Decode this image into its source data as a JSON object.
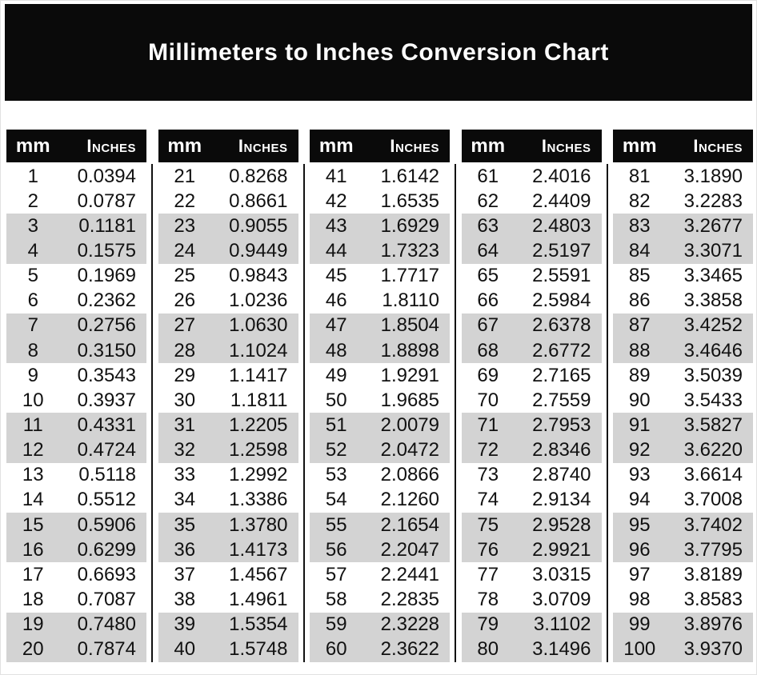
{
  "title": "Millimeters to Inches Conversion Chart",
  "table_headers": {
    "mm": "mm",
    "inches": "Inches"
  },
  "colors": {
    "banner_bg": "#0a0a0a",
    "header_bg": "#0a0a0a",
    "header_text": "#ffffff",
    "title_color": "#ffffff",
    "stripe_gray": "#d3d3d3",
    "divider_color": "#111111",
    "body_text": "#111111",
    "page_bg": "#ffffff"
  },
  "chart_data": {
    "type": "table",
    "title": "Millimeters to Inches Conversion Chart",
    "column_headers": [
      "mm",
      "Inches"
    ],
    "layout": {
      "groups_count": 5,
      "rows_per_group": 20,
      "stripe_pattern": "alternating-pairs"
    },
    "groups": [
      {
        "rows": [
          [
            "1",
            "0.0394"
          ],
          [
            "2",
            "0.0787"
          ],
          [
            "3",
            "0.1181"
          ],
          [
            "4",
            "0.1575"
          ],
          [
            "5",
            "0.1969"
          ],
          [
            "6",
            "0.2362"
          ],
          [
            "7",
            "0.2756"
          ],
          [
            "8",
            "0.3150"
          ],
          [
            "9",
            "0.3543"
          ],
          [
            "10",
            "0.3937"
          ],
          [
            "11",
            "0.4331"
          ],
          [
            "12",
            "0.4724"
          ],
          [
            "13",
            "0.5118"
          ],
          [
            "14",
            "0.5512"
          ],
          [
            "15",
            "0.5906"
          ],
          [
            "16",
            "0.6299"
          ],
          [
            "17",
            "0.6693"
          ],
          [
            "18",
            "0.7087"
          ],
          [
            "19",
            "0.7480"
          ],
          [
            "20",
            "0.7874"
          ]
        ]
      },
      {
        "rows": [
          [
            "21",
            "0.8268"
          ],
          [
            "22",
            "0.8661"
          ],
          [
            "23",
            "0.9055"
          ],
          [
            "24",
            "0.9449"
          ],
          [
            "25",
            "0.9843"
          ],
          [
            "26",
            "1.0236"
          ],
          [
            "27",
            "1.0630"
          ],
          [
            "28",
            "1.1024"
          ],
          [
            "29",
            "1.1417"
          ],
          [
            "30",
            "1.1811"
          ],
          [
            "31",
            "1.2205"
          ],
          [
            "32",
            "1.2598"
          ],
          [
            "33",
            "1.2992"
          ],
          [
            "34",
            "1.3386"
          ],
          [
            "35",
            "1.3780"
          ],
          [
            "36",
            "1.4173"
          ],
          [
            "37",
            "1.4567"
          ],
          [
            "38",
            "1.4961"
          ],
          [
            "39",
            "1.5354"
          ],
          [
            "40",
            "1.5748"
          ]
        ]
      },
      {
        "rows": [
          [
            "41",
            "1.6142"
          ],
          [
            "42",
            "1.6535"
          ],
          [
            "43",
            "1.6929"
          ],
          [
            "44",
            "1.7323"
          ],
          [
            "45",
            "1.7717"
          ],
          [
            "46",
            "1.8110"
          ],
          [
            "47",
            "1.8504"
          ],
          [
            "48",
            "1.8898"
          ],
          [
            "49",
            "1.9291"
          ],
          [
            "50",
            "1.9685"
          ],
          [
            "51",
            "2.0079"
          ],
          [
            "52",
            "2.0472"
          ],
          [
            "53",
            "2.0866"
          ],
          [
            "54",
            "2.1260"
          ],
          [
            "55",
            "2.1654"
          ],
          [
            "56",
            "2.2047"
          ],
          [
            "57",
            "2.2441"
          ],
          [
            "58",
            "2.2835"
          ],
          [
            "59",
            "2.3228"
          ],
          [
            "60",
            "2.3622"
          ]
        ]
      },
      {
        "rows": [
          [
            "61",
            "2.4016"
          ],
          [
            "62",
            "2.4409"
          ],
          [
            "63",
            "2.4803"
          ],
          [
            "64",
            "2.5197"
          ],
          [
            "65",
            "2.5591"
          ],
          [
            "66",
            "2.5984"
          ],
          [
            "67",
            "2.6378"
          ],
          [
            "68",
            "2.6772"
          ],
          [
            "69",
            "2.7165"
          ],
          [
            "70",
            "2.7559"
          ],
          [
            "71",
            "2.7953"
          ],
          [
            "72",
            "2.8346"
          ],
          [
            "73",
            "2.8740"
          ],
          [
            "74",
            "2.9134"
          ],
          [
            "75",
            "2.9528"
          ],
          [
            "76",
            "2.9921"
          ],
          [
            "77",
            "3.0315"
          ],
          [
            "78",
            "3.0709"
          ],
          [
            "79",
            "3.1102"
          ],
          [
            "80",
            "3.1496"
          ]
        ]
      },
      {
        "rows": [
          [
            "81",
            "3.1890"
          ],
          [
            "82",
            "3.2283"
          ],
          [
            "83",
            "3.2677"
          ],
          [
            "84",
            "3.3071"
          ],
          [
            "85",
            "3.3465"
          ],
          [
            "86",
            "3.3858"
          ],
          [
            "87",
            "3.4252"
          ],
          [
            "88",
            "3.4646"
          ],
          [
            "89",
            "3.5039"
          ],
          [
            "90",
            "3.5433"
          ],
          [
            "91",
            "3.5827"
          ],
          [
            "92",
            "3.6220"
          ],
          [
            "93",
            "3.6614"
          ],
          [
            "94",
            "3.7008"
          ],
          [
            "95",
            "3.7402"
          ],
          [
            "96",
            "3.7795"
          ],
          [
            "97",
            "3.8189"
          ],
          [
            "98",
            "3.8583"
          ],
          [
            "99",
            "3.8976"
          ],
          [
            "100",
            "3.9370"
          ]
        ]
      }
    ]
  }
}
